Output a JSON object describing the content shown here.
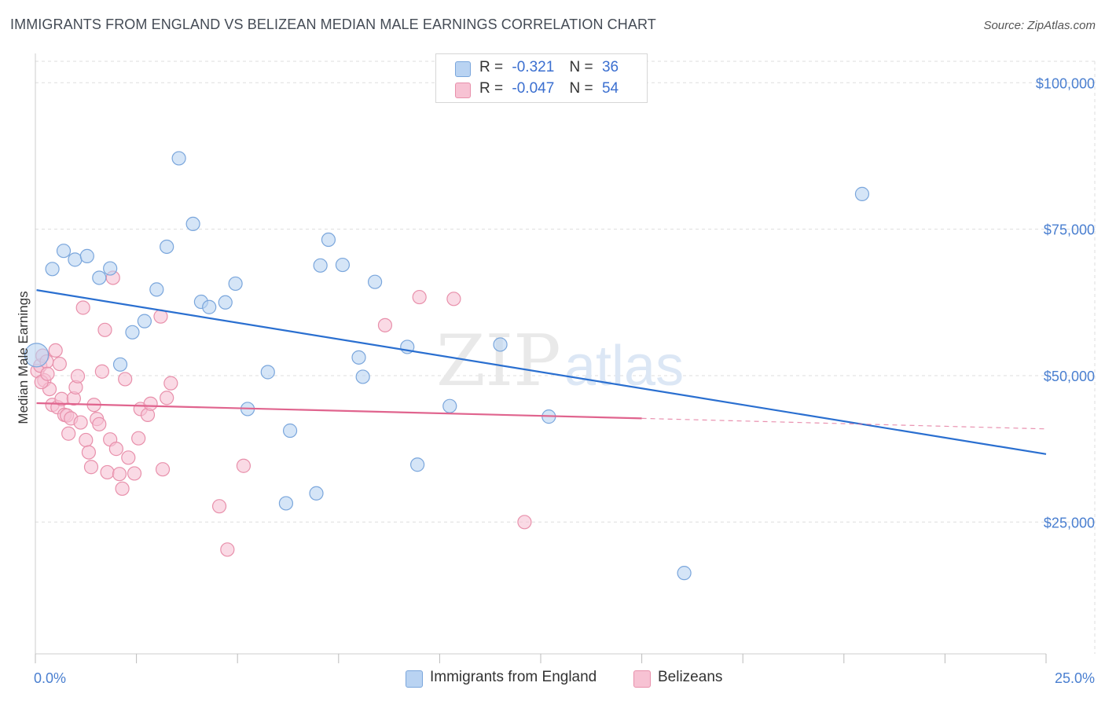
{
  "title": "IMMIGRANTS FROM ENGLAND VS BELIZEAN MEDIAN MALE EARNINGS CORRELATION CHART",
  "source": "Source: ZipAtlas.com",
  "watermark": {
    "zip": "ZIP",
    "atlas": "atlas"
  },
  "colors": {
    "blue_fill": "#b9d3f2",
    "blue_stroke": "#7aa6dc",
    "blue_line": "#2a6fd0",
    "pink_fill": "#f7c2d3",
    "pink_stroke": "#e890ab",
    "pink_line": "#e0648e",
    "tick": "#4a7fd0",
    "grid": "#dddddd"
  },
  "legend": {
    "rows": [
      {
        "r_label": "R =",
        "r_value": "-0.321",
        "n_label": "N =",
        "n_value": "36"
      },
      {
        "r_label": "R =",
        "r_value": "-0.047",
        "n_label": "N =",
        "n_value": "54"
      }
    ]
  },
  "bottom_legend": [
    "Immigrants from England",
    "Belizeans"
  ],
  "chart_data": {
    "type": "scatter",
    "title": "IMMIGRANTS FROM ENGLAND VS BELIZEAN MEDIAN MALE EARNINGS CORRELATION CHART",
    "xlabel": "",
    "ylabel": "Median Male Earnings",
    "xlim": [
      0,
      25
    ],
    "ylim": [
      2500,
      105000
    ],
    "x_tick_labels": [
      "0.0%",
      "25.0%"
    ],
    "y_ticks": [
      25000,
      50000,
      75000,
      100000
    ],
    "y_tick_labels": [
      "$25,000",
      "$50,000",
      "$75,000",
      "$100,000"
    ],
    "grid": true,
    "legend_position": "top-center",
    "series": [
      {
        "name": "Immigrants from England",
        "points": [
          [
            0.03,
            53500
          ],
          [
            0.42,
            68200
          ],
          [
            0.7,
            71300
          ],
          [
            0.98,
            69800
          ],
          [
            1.28,
            70400
          ],
          [
            1.58,
            66700
          ],
          [
            1.85,
            68300
          ],
          [
            2.1,
            51900
          ],
          [
            2.4,
            57400
          ],
          [
            2.7,
            59300
          ],
          [
            3.0,
            64700
          ],
          [
            3.25,
            72000
          ],
          [
            3.55,
            87100
          ],
          [
            3.9,
            75900
          ],
          [
            4.1,
            62600
          ],
          [
            4.3,
            61700
          ],
          [
            4.7,
            62500
          ],
          [
            4.95,
            65700
          ],
          [
            5.25,
            44300
          ],
          [
            5.75,
            50600
          ],
          [
            6.2,
            28200
          ],
          [
            6.3,
            40600
          ],
          [
            6.95,
            29900
          ],
          [
            7.05,
            68800
          ],
          [
            7.25,
            73200
          ],
          [
            7.6,
            68900
          ],
          [
            8.0,
            53100
          ],
          [
            8.1,
            49800
          ],
          [
            8.4,
            66000
          ],
          [
            9.2,
            54900
          ],
          [
            9.45,
            34800
          ],
          [
            10.25,
            44800
          ],
          [
            11.5,
            55300
          ],
          [
            12.7,
            43000
          ],
          [
            16.05,
            16300
          ],
          [
            20.45,
            81000
          ]
        ],
        "trend": {
          "x0": 0.03,
          "y0": 64600,
          "x1": 25,
          "y1": 36600
        }
      },
      {
        "name": "Belizeans",
        "points": [
          [
            0.05,
            50800
          ],
          [
            0.12,
            51700
          ],
          [
            0.18,
            53400
          ],
          [
            0.22,
            49200
          ],
          [
            0.28,
            52400
          ],
          [
            0.35,
            47700
          ],
          [
            0.42,
            45000
          ],
          [
            0.5,
            54300
          ],
          [
            0.55,
            44600
          ],
          [
            0.6,
            52000
          ],
          [
            0.65,
            46000
          ],
          [
            0.72,
            43300
          ],
          [
            0.78,
            43200
          ],
          [
            0.82,
            40100
          ],
          [
            0.88,
            42700
          ],
          [
            0.95,
            46100
          ],
          [
            1.0,
            48000
          ],
          [
            1.05,
            49900
          ],
          [
            1.12,
            42000
          ],
          [
            1.18,
            61600
          ],
          [
            1.25,
            39000
          ],
          [
            1.32,
            36900
          ],
          [
            1.38,
            34400
          ],
          [
            1.45,
            45000
          ],
          [
            1.52,
            42600
          ],
          [
            1.58,
            41700
          ],
          [
            1.65,
            50700
          ],
          [
            1.72,
            57800
          ],
          [
            1.78,
            33500
          ],
          [
            1.85,
            39100
          ],
          [
            1.92,
            66700
          ],
          [
            2.0,
            37500
          ],
          [
            2.08,
            33200
          ],
          [
            2.15,
            30700
          ],
          [
            2.22,
            49400
          ],
          [
            2.3,
            36000
          ],
          [
            2.45,
            33300
          ],
          [
            2.55,
            39300
          ],
          [
            2.6,
            44300
          ],
          [
            2.78,
            43300
          ],
          [
            2.85,
            45200
          ],
          [
            3.1,
            60100
          ],
          [
            3.15,
            34000
          ],
          [
            3.25,
            46200
          ],
          [
            3.35,
            48700
          ],
          [
            4.55,
            27700
          ],
          [
            4.75,
            20300
          ],
          [
            5.15,
            34600
          ],
          [
            8.65,
            58600
          ],
          [
            9.5,
            63400
          ],
          [
            10.35,
            63100
          ],
          [
            12.1,
            25000
          ],
          [
            0.15,
            48900
          ],
          [
            0.3,
            50300
          ]
        ],
        "trend": {
          "x0": 0.03,
          "y0": 45300,
          "x1": 15,
          "y1": 42700
        },
        "trend_dashed": {
          "x0": 15,
          "y0": 42700,
          "x1": 25,
          "y1": 40900
        }
      }
    ]
  }
}
